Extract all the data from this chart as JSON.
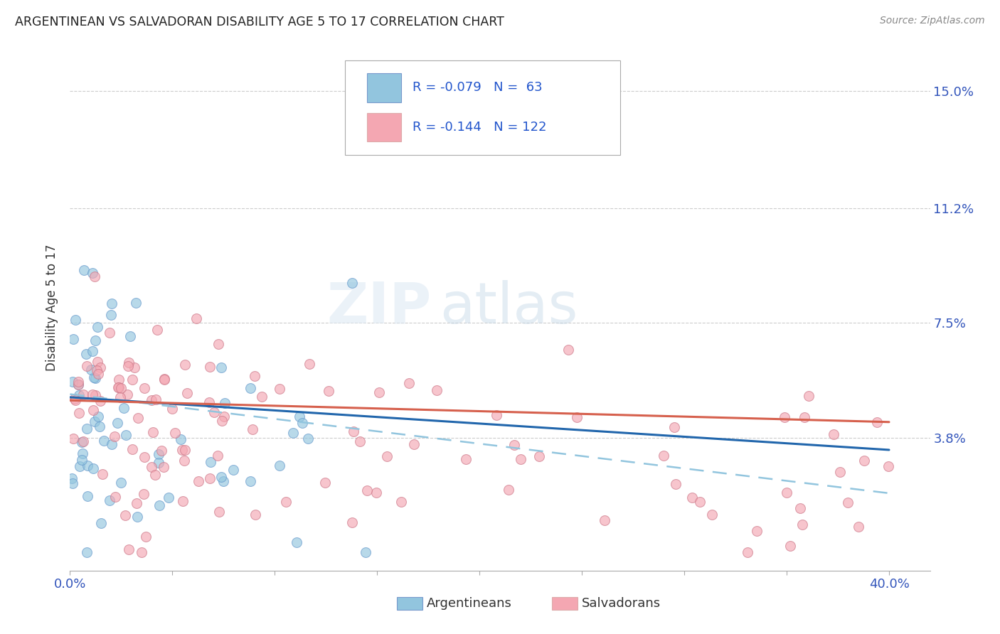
{
  "title": "ARGENTINEAN VS SALVADORAN DISABILITY AGE 5 TO 17 CORRELATION CHART",
  "source": "Source: ZipAtlas.com",
  "ylabel": "Disability Age 5 to 17",
  "xlim": [
    0.0,
    0.42
  ],
  "ylim": [
    -0.005,
    0.165
  ],
  "xtick_positions": [
    0.0,
    0.05,
    0.1,
    0.15,
    0.2,
    0.25,
    0.3,
    0.35,
    0.4
  ],
  "xtick_labels": [
    "0.0%",
    "",
    "",
    "",
    "",
    "",
    "",
    "",
    "40.0%"
  ],
  "ytick_positions": [
    0.038,
    0.075,
    0.112,
    0.15
  ],
  "ytick_labels": [
    "3.8%",
    "7.5%",
    "11.2%",
    "15.0%"
  ],
  "blue_color": "#92c5de",
  "pink_color": "#f4a7b2",
  "blue_line_color": "#2166ac",
  "pink_line_color": "#d6604d",
  "dashed_line_color": "#92c5de",
  "r_blue": -0.079,
  "n_blue": 63,
  "r_pink": -0.144,
  "n_pink": 122,
  "legend_label_blue": "Argentineans",
  "legend_label_pink": "Salvadorans",
  "blue_trend_x": [
    0.0,
    0.4
  ],
  "blue_trend_y": [
    0.051,
    0.034
  ],
  "pink_trend_x": [
    0.0,
    0.4
  ],
  "pink_trend_y": [
    0.05,
    0.043
  ],
  "dashed_trend_x": [
    0.0,
    0.4
  ],
  "dashed_trend_y": [
    0.052,
    0.02
  ]
}
